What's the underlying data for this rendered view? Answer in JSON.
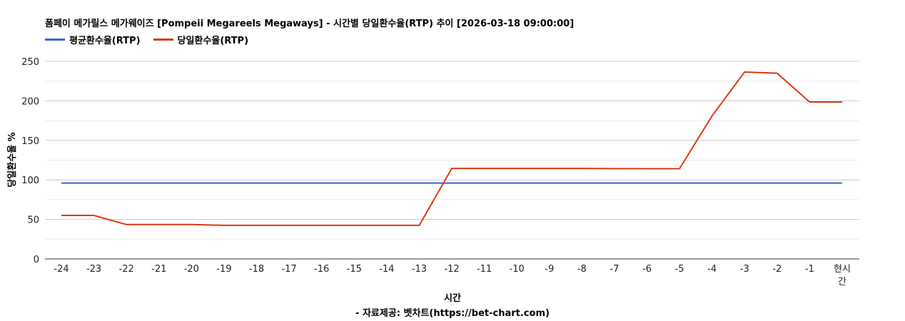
{
  "chart_data": {
    "type": "line",
    "title": "폼페이 메가릴스 메가웨이즈 [Pompeii Megareels Megaways] - 시간별 당일환수율(RTP) 추이 [2026-03-18 09:00:00]",
    "xlabel": "시간",
    "ylabel": "당일환수율 %",
    "footer": "- 자료제공: 벳차트(https://bet-chart.com)",
    "categories": [
      "-24",
      "-23",
      "-22",
      "-21",
      "-20",
      "-19",
      "-18",
      "-17",
      "-16",
      "-15",
      "-14",
      "-13",
      "-12",
      "-11",
      "-10",
      "-9",
      "-8",
      "-7",
      "-6",
      "-5",
      "-4",
      "-3",
      "-2",
      "-1",
      "현시간"
    ],
    "ylim": [
      0,
      250
    ],
    "yticks": [
      0,
      50,
      100,
      150,
      200,
      250
    ],
    "grid": true,
    "legend_position": "top-left",
    "series": [
      {
        "name": "평균환수율(RTP)",
        "color": "#3366cc",
        "values": [
          96,
          96,
          96,
          96,
          96,
          96,
          96,
          96,
          96,
          96,
          96,
          96,
          96,
          96,
          96,
          96,
          96,
          96,
          96,
          96,
          96,
          96,
          96,
          96,
          96
        ]
      },
      {
        "name": "당일환수율(RTP)",
        "color": "#dc3912",
        "values": [
          55,
          55,
          43.5,
          43.5,
          43.5,
          42.5,
          42.5,
          42.5,
          42.5,
          42.5,
          42.5,
          42.5,
          114.5,
          114.5,
          114.5,
          114.5,
          114.5,
          114.3,
          114.2,
          114.2,
          181,
          236.5,
          235,
          198.5,
          198.5
        ]
      }
    ]
  }
}
